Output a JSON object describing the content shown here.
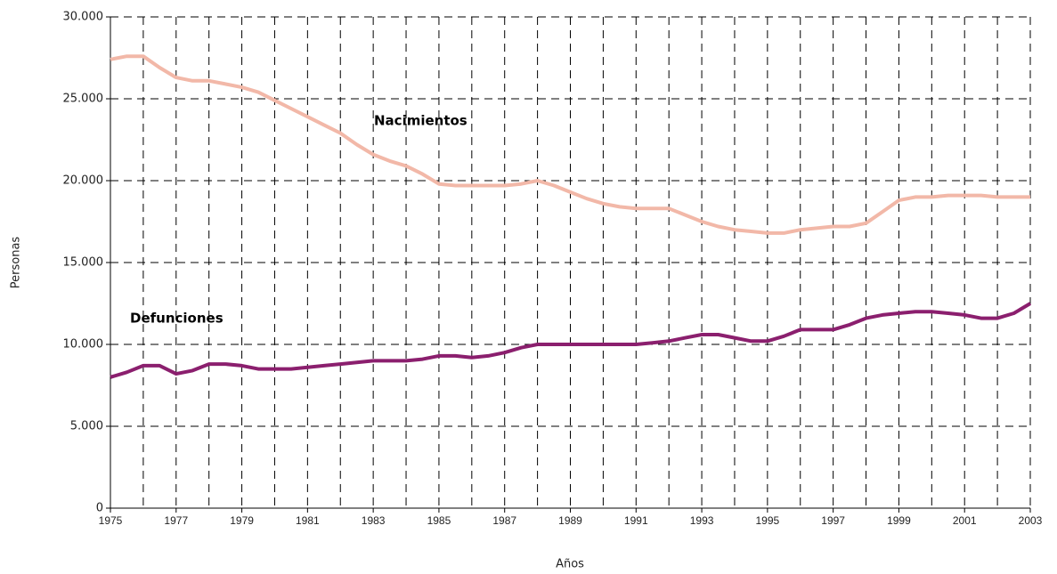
{
  "chart_data": {
    "type": "line",
    "x_label": "Años",
    "y_label": "Personas",
    "x": [
      1975,
      1975.5,
      1976,
      1976.5,
      1977,
      1977.5,
      1978,
      1978.5,
      1979,
      1979.5,
      1980,
      1980.5,
      1981,
      1981.5,
      1982,
      1982.5,
      1983,
      1983.5,
      1984,
      1984.5,
      1985,
      1985.5,
      1986,
      1986.5,
      1987,
      1987.5,
      1988,
      1988.5,
      1989,
      1989.5,
      1990,
      1990.5,
      1991,
      1991.5,
      1992,
      1992.5,
      1993,
      1993.5,
      1994,
      1994.5,
      1995,
      1995.5,
      1996,
      1996.5,
      1997,
      1997.5,
      1998,
      1998.5,
      1999,
      1999.5,
      2000,
      2000.5,
      2001,
      2001.5,
      2002,
      2002.5,
      2003
    ],
    "series": [
      {
        "name": "Nacimientos",
        "color": "#f2b8a8",
        "values": [
          27400,
          27600,
          27600,
          26900,
          26300,
          26100,
          26100,
          25900,
          25700,
          25400,
          24900,
          24400,
          23900,
          23400,
          22900,
          22200,
          21600,
          21200,
          20900,
          20400,
          19800,
          19700,
          19700,
          19700,
          19700,
          19800,
          20000,
          19700,
          19300,
          18900,
          18600,
          18400,
          18300,
          18300,
          18300,
          17900,
          17500,
          17200,
          17000,
          16900,
          16800,
          16800,
          17000,
          17100,
          17200,
          17200,
          17400,
          18100,
          18800,
          19000,
          19000,
          19100,
          19100,
          19100,
          19000,
          19000,
          19000
        ]
      },
      {
        "name": "Defunciones",
        "color": "#8b1f6e",
        "values": [
          8000,
          8300,
          8700,
          8700,
          8200,
          8400,
          8800,
          8800,
          8700,
          8500,
          8500,
          8500,
          8600,
          8700,
          8800,
          8900,
          9000,
          9000,
          9000,
          9100,
          9300,
          9300,
          9200,
          9300,
          9500,
          9800,
          10000,
          10000,
          10000,
          10000,
          10000,
          10000,
          10000,
          10100,
          10200,
          10400,
          10600,
          10600,
          10400,
          10200,
          10200,
          10500,
          10900,
          10900,
          10900,
          11200,
          11600,
          11800,
          11900,
          12000,
          12000,
          11900,
          11800,
          11600,
          11600,
          11900,
          12500
        ]
      }
    ],
    "xlim": [
      1975,
      2003
    ],
    "xticks": [
      1975,
      1977,
      1979,
      1981,
      1983,
      1985,
      1987,
      1989,
      1991,
      1993,
      1995,
      1997,
      1999,
      2001,
      2003
    ],
    "x_minor_ticks": [
      1976,
      1978,
      1980,
      1982,
      1984,
      1986,
      1988,
      1990,
      1992,
      1994,
      1996,
      1998,
      2000,
      2002
    ],
    "ylim": [
      0,
      30000
    ],
    "yticks": [
      0,
      {
        "value": 5000,
        "label": "5.000"
      },
      {
        "value": 10000,
        "label": "10.000"
      },
      {
        "value": 15000,
        "label": "15.000"
      },
      {
        "value": 20000,
        "label": "20.000"
      },
      {
        "value": 25000,
        "label": "25.000"
      },
      {
        "value": 30000,
        "label": "30.000"
      }
    ],
    "grid": true
  }
}
